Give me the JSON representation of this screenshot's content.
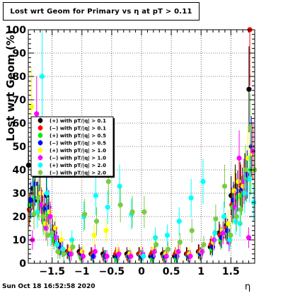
{
  "title": "Lost wrt Geom for Primary vs  η at pT > 0.11",
  "footer": "Sun Oct 18 16:52:58 2020",
  "chart_data": {
    "type": "scatter",
    "title": "Lost wrt Geom for Primary vs  η at pT > 0.11",
    "xlabel": "η",
    "ylabel": "Lost wrt Geom (%)",
    "xlim": [
      -1.9,
      1.9
    ],
    "ylim": [
      0,
      100
    ],
    "xticks": [
      -1.5,
      -1,
      -0.5,
      0,
      0.5,
      1,
      1.5
    ],
    "xtick_labels": [
      "−1.5",
      "−1",
      "−0.5",
      "0",
      "0.5",
      "1",
      "1.5"
    ],
    "yticks": [
      0,
      10,
      20,
      30,
      40,
      50,
      60,
      70,
      80,
      90,
      100
    ],
    "grid": true,
    "legend_position": "left-middle",
    "series": [
      {
        "name": "(+) with pT/|q| > 0.1",
        "color": "#000000",
        "x": [
          -1.85,
          -1.78,
          -1.7,
          -1.62,
          -1.55,
          -1.45,
          -1.35,
          -1.2,
          -1.0,
          -0.8,
          -0.6,
          -0.4,
          -0.2,
          0.0,
          0.2,
          0.4,
          0.6,
          0.8,
          1.0,
          1.2,
          1.35,
          1.45,
          1.55,
          1.62,
          1.7,
          1.78,
          1.85
        ],
        "y": [
          42,
          32,
          27,
          24,
          29,
          14,
          8,
          5,
          5,
          4,
          4,
          3,
          4,
          4,
          3,
          4,
          3,
          4,
          5,
          7,
          13,
          16,
          29,
          33,
          34,
          37,
          74.5
        ]
      },
      {
        "name": "(−) with pT/|q| > 0.1",
        "color": "#ff0000",
        "x": [
          -1.85,
          -1.78,
          -1.7,
          -1.62,
          -1.55,
          -1.45,
          -1.35,
          -1.2,
          -1.0,
          -0.8,
          -0.6,
          -0.4,
          -0.2,
          0.0,
          0.2,
          0.4,
          0.6,
          0.8,
          1.0,
          1.2,
          1.35,
          1.45,
          1.55,
          1.62,
          1.7,
          1.78,
          1.85
        ],
        "y": [
          23,
          30,
          28,
          22,
          25,
          12,
          7,
          5,
          4,
          4,
          3,
          4,
          3,
          4,
          4,
          3,
          4,
          4,
          5,
          8,
          12,
          15,
          25,
          30,
          33,
          37,
          100
        ]
      },
      {
        "name": "(+) with pT/|q| > 0.5",
        "color": "#00ee00",
        "x": [
          -1.85,
          -1.78,
          -1.7,
          -1.62,
          -1.55,
          -1.45,
          -1.35,
          -1.2,
          -1.0,
          -0.8,
          -0.6,
          -0.4,
          -0.2,
          0.0,
          0.2,
          0.4,
          0.6,
          0.8,
          1.0,
          1.2,
          1.35,
          1.45,
          1.55,
          1.62,
          1.7,
          1.78,
          1.85
        ],
        "y": [
          25,
          28,
          26,
          18,
          21,
          10,
          5,
          4,
          3,
          3,
          3,
          2,
          3,
          3,
          2,
          3,
          2,
          3,
          4,
          6,
          10,
          13,
          24,
          28,
          29,
          36,
          40
        ]
      },
      {
        "name": "(−) with pT/|q| > 0.5",
        "color": "#0000ff",
        "x": [
          -1.85,
          -1.78,
          -1.7,
          -1.62,
          -1.55,
          -1.45,
          -1.35,
          -1.2,
          -1.0,
          -0.8,
          -0.6,
          -0.4,
          -0.2,
          0.0,
          0.2,
          0.4,
          0.6,
          0.8,
          1.0,
          1.2,
          1.35,
          1.45,
          1.55,
          1.62,
          1.7,
          1.78,
          1.85
        ],
        "y": [
          27,
          34,
          30,
          23,
          24,
          13,
          7,
          4,
          4,
          3,
          3,
          3,
          3,
          3,
          3,
          3,
          3,
          3,
          4,
          7,
          11,
          14,
          27,
          31,
          32,
          38,
          50
        ]
      },
      {
        "name": "(+) with pT/|q| > 1.0",
        "color": "#ffff00",
        "x": [
          -1.85,
          -1.78,
          -1.7,
          -1.62,
          -1.55,
          -1.45,
          -1.35,
          -1.2,
          -1.0,
          -0.8,
          -0.6,
          -0.4,
          -0.2,
          0.0,
          0.2,
          0.4,
          0.6,
          0.8,
          1.0,
          1.2,
          1.35,
          1.45,
          1.55,
          1.62,
          1.7,
          1.78,
          1.85
        ],
        "y": [
          67,
          40,
          30,
          17,
          22,
          15,
          10,
          6,
          5,
          12,
          14,
          5,
          4,
          4,
          6,
          4,
          5,
          4,
          5,
          9,
          14,
          17,
          31,
          35,
          33,
          45,
          47
        ]
      },
      {
        "name": "(−) with pT/|q| > 1.0",
        "color": "#ff00ff",
        "x": [
          -1.85,
          -1.78,
          -1.7,
          -1.62,
          -1.55,
          -1.45,
          -1.35,
          -1.2,
          -1.0,
          -0.8,
          -0.6,
          -0.4,
          -0.2,
          0.0,
          0.2,
          0.4,
          0.6,
          0.8,
          1.0,
          1.2,
          1.35,
          1.45,
          1.55,
          1.62,
          1.7,
          1.78,
          1.85
        ],
        "y": [
          10,
          64,
          25,
          15,
          20,
          11,
          6,
          4,
          3,
          5,
          3,
          4,
          3,
          4,
          5,
          3,
          5,
          3,
          5,
          10,
          13,
          9,
          24,
          45,
          35,
          11,
          48
        ]
      },
      {
        "name": "(+) with pT/|q| > 2.0",
        "color": "#00ffff",
        "x": [
          -1.85,
          -1.78,
          -1.7,
          -1.62,
          -1.55,
          -1.45,
          -1.35,
          -1.2,
          -1.0,
          -0.8,
          -0.6,
          -0.4,
          -0.2,
          0.0,
          0.2,
          0.4,
          0.6,
          0.8,
          1.0,
          1.2,
          1.35,
          1.45,
          1.55,
          1.62,
          1.7,
          1.78,
          1.85
        ],
        "y": [
          38,
          22,
          80,
          30,
          12,
          8,
          6,
          10,
          20,
          29,
          24,
          33,
          21,
          3,
          11,
          12,
          18,
          28,
          35,
          13,
          20,
          10,
          18,
          17,
          30,
          36,
          26
        ]
      },
      {
        "name": "(−) with pT/|q| > 2.0",
        "color": "#77cc44",
        "x": [
          -1.85,
          -1.78,
          -1.7,
          -1.62,
          -1.55,
          -1.45,
          -1.35,
          -1.2,
          -1.0,
          -0.8,
          -0.6,
          -0.4,
          -0.2,
          0.0,
          0.2,
          0.4,
          0.6,
          0.8,
          1.0,
          1.2,
          1.35,
          1.45,
          1.55,
          1.62,
          1.7,
          1.78,
          1.85
        ],
        "y": [
          21,
          28,
          20,
          12,
          13,
          5,
          4,
          7,
          21,
          18,
          35,
          25,
          22,
          22,
          8,
          6,
          9,
          14,
          8,
          19,
          33,
          12,
          20,
          23,
          40,
          58,
          40
        ]
      }
    ]
  }
}
